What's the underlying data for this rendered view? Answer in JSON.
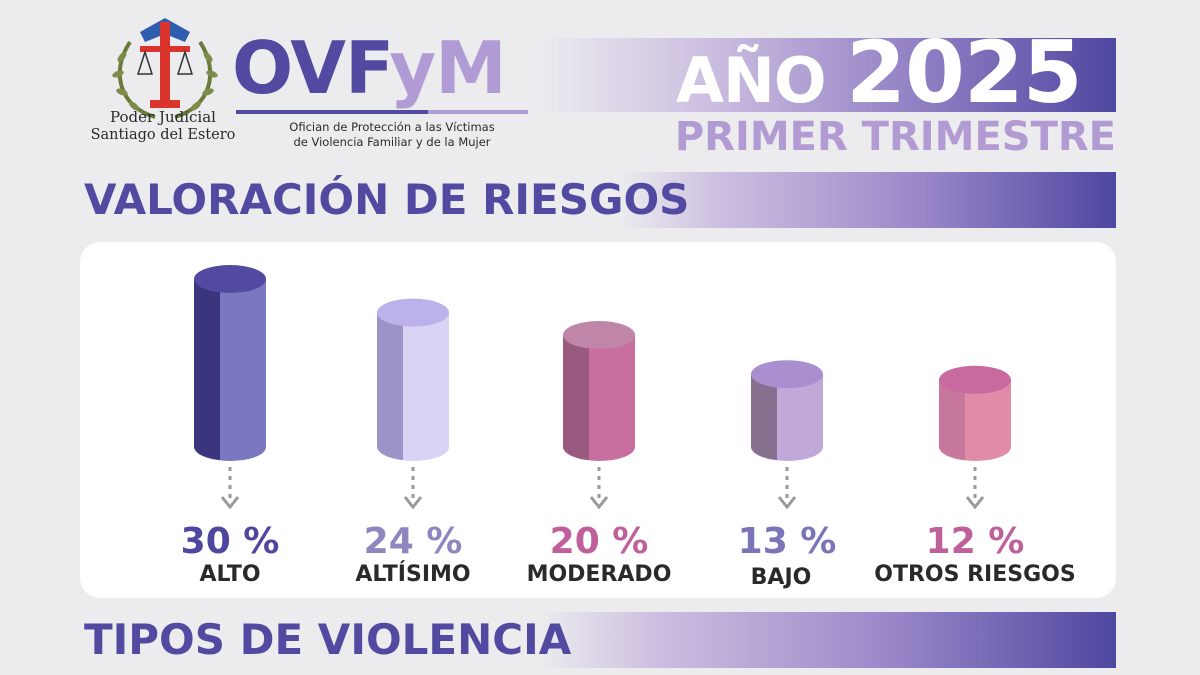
{
  "header": {
    "institution_line1": "Poder Judicial",
    "institution_line2": "Santiago del Estero",
    "brand_a": "OVF",
    "brand_b": "yM",
    "subtitle_line1": "Ofician de Protección a las Víctimas",
    "subtitle_line2": "de Violencia Familiar y de la Mujer",
    "year_prefix": "AÑO",
    "year": "2025",
    "period": "PRIMER TRIMESTRE"
  },
  "sections": {
    "risk_title": "VALORACIÓN DE RIESGOS",
    "violence_title": "TIPOS DE VIOLENCIA"
  },
  "colors": {
    "brand_purple": "#524aa0",
    "brand_lilac": "#b19bd4",
    "background": "#ececef"
  },
  "chart_data": {
    "type": "bar",
    "title": "VALORACIÓN DE RIESGOS",
    "categories": [
      "ALTO",
      "ALTÍSIMO",
      "MODERADO",
      "BAJO",
      "OTROS RIESGOS"
    ],
    "values": [
      30,
      24,
      20,
      13,
      12
    ],
    "labels": [
      "30 %",
      "24 %",
      "20 %",
      "13 %",
      "12 %"
    ],
    "unit": "%",
    "colors": [
      {
        "front": "#7a78c0",
        "side": "#3a357d",
        "top": "#524aa0",
        "label": "#4e47a0"
      },
      {
        "front": "#d9d3f4",
        "side": "#9c93c6",
        "top": "#bdb1eb",
        "label": "#8f86c0"
      },
      {
        "front": "#c86f9f",
        "side": "#9a5a80",
        "top": "#bf86a8",
        "label": "#c0609b"
      },
      {
        "front": "#c0a8d8",
        "side": "#85708f",
        "top": "#a98ed0",
        "label": "#7a74b8"
      },
      {
        "front": "#e08ca8",
        "side": "#c9789d",
        "top": "#c86aa0",
        "label": "#c0609b"
      }
    ],
    "grid": false,
    "legend": "none"
  }
}
